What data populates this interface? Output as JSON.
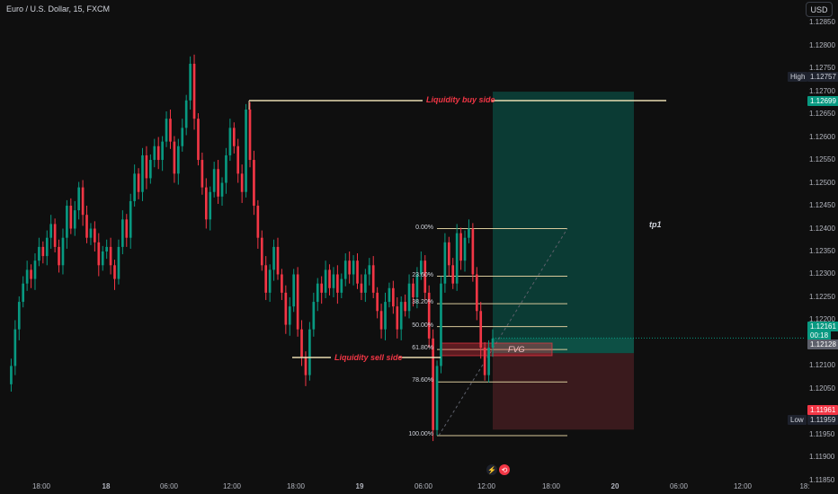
{
  "header": {
    "symbol_title": "Euro / U.S. Dollar, 15, FXCM",
    "currency_button": "USD"
  },
  "markers": {
    "high_label": "High",
    "high_value": "1.12757",
    "low_label": "Low",
    "low_value": "1.11959",
    "target_value": "1.12699",
    "price_value": "1.12161",
    "countdown": "00:18",
    "entry_value": "1.12128",
    "stop_value": "1.11961"
  },
  "annotations": {
    "liquidity_buy": "Liquidity buy side",
    "liquidity_sell": "Liquidity sell side",
    "tp1": "tp1",
    "fvg": "FVG"
  },
  "fib_levels": [
    {
      "label": "0.00%",
      "price": 1.124
    },
    {
      "label": "23.60%",
      "price": 1.12296
    },
    {
      "label": "38.20%",
      "price": 1.12236
    },
    {
      "label": "50.00%",
      "price": 1.12186
    },
    {
      "label": "61.80%",
      "price": 1.12136
    },
    {
      "label": "78.60%",
      "price": 1.12065
    },
    {
      "label": "100.00%",
      "price": 1.11948
    }
  ],
  "bottom_icons": [
    {
      "icon": "lightning-icon",
      "color": "#787b86"
    },
    {
      "icon": "replay-icon",
      "color": "#f23645"
    }
  ],
  "chart_data": {
    "type": "candlestick",
    "title": "Euro / U.S. Dollar, 15, FXCM",
    "y_ticks": [
      "1.12850",
      "1.12800",
      "1.12750",
      "1.12700",
      "1.12650",
      "1.12600",
      "1.12550",
      "1.12500",
      "1.12450",
      "1.12400",
      "1.12350",
      "1.12300",
      "1.12250",
      "1.12200",
      "1.12150",
      "1.12100",
      "1.12050",
      "1.12000",
      "1.11950",
      "1.11900",
      "1.11850"
    ],
    "x_ticks": [
      "18:00",
      "18",
      "06:00",
      "12:00",
      "18:00",
      "19",
      "06:00",
      "12:00",
      "18:00",
      "20",
      "06:00",
      "12:00",
      "18:"
    ],
    "ylim": [
      1.1184,
      1.1286
    ],
    "grid": false,
    "colors": {
      "up": "#089981",
      "down": "#f23645",
      "target_zone": "#0b3b34",
      "stop_zone": "#3a1a1d",
      "fib_line": "#d8c99b",
      "fvg": "#f23645"
    },
    "prices": [
      1.1206,
      1.121,
      1.1218,
      1.1224,
      1.1228,
      1.1231,
      1.1229,
      1.1233,
      1.1236,
      1.1234,
      1.1238,
      1.1241,
      1.1236,
      1.1232,
      1.1238,
      1.1245,
      1.124,
      1.1244,
      1.1249,
      1.1243,
      1.1238,
      1.124,
      1.1237,
      1.1232,
      1.1235,
      1.1236,
      1.1232,
      1.1229,
      1.1236,
      1.1242,
      1.1238,
      1.1246,
      1.1252,
      1.1248,
      1.1256,
      1.1251,
      1.1255,
      1.1258,
      1.1255,
      1.1259,
      1.1264,
      1.1259,
      1.1252,
      1.1258,
      1.1262,
      1.1268,
      1.1276,
      1.1264,
      1.1255,
      1.1249,
      1.1242,
      1.1248,
      1.1253,
      1.1247,
      1.125,
      1.1256,
      1.1262,
      1.1258,
      1.1252,
      1.1248,
      1.1266,
      1.1255,
      1.1245,
      1.1238,
      1.1232,
      1.1226,
      1.1231,
      1.1236,
      1.123,
      1.1226,
      1.1219,
      1.1223,
      1.123,
      1.1218,
      1.1212,
      1.1208,
      1.1218,
      1.1224,
      1.1228,
      1.1226,
      1.1231,
      1.1227,
      1.123,
      1.1226,
      1.1229,
      1.1233,
      1.123,
      1.1233,
      1.1228,
      1.1226,
      1.123,
      1.1232,
      1.1226,
      1.1222,
      1.1218,
      1.1224,
      1.1227,
      1.1223,
      1.1218,
      1.1224,
      1.1222,
      1.1228,
      1.1225,
      1.123,
      1.1233,
      1.1226,
      1.1216,
      1.1196,
      1.121,
      1.1228,
      1.1237,
      1.1232,
      1.1228,
      1.1239,
      1.1233,
      1.1238,
      1.124,
      1.123,
      1.1222,
      1.1214,
      1.1208,
      1.1214,
      1.1216
    ]
  }
}
